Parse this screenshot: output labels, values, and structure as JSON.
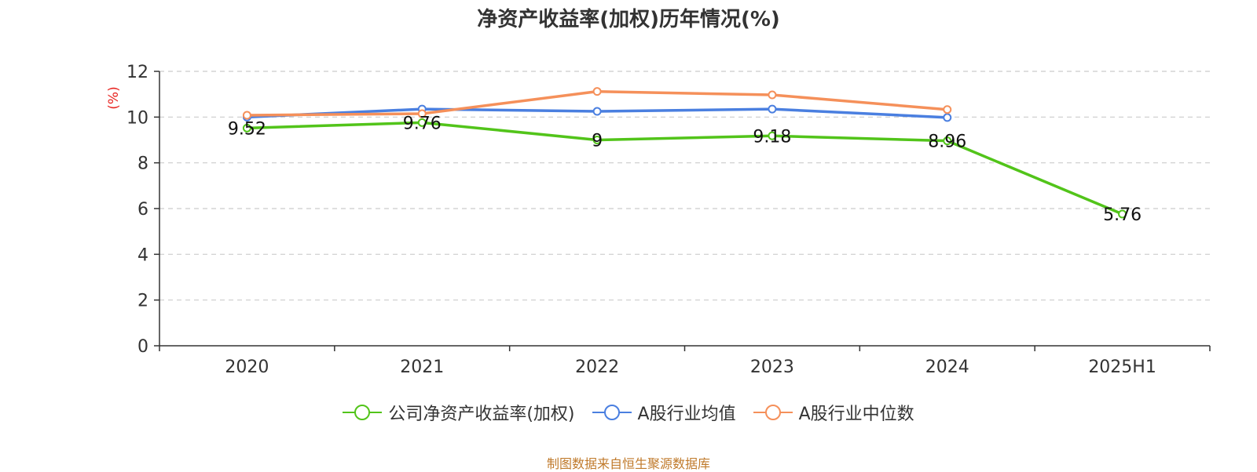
{
  "chart_data": {
    "type": "line",
    "title": "净资产收益率(加权)历年情况(%)",
    "ylabel": "(%)",
    "ylim": [
      0,
      12
    ],
    "yticks": [
      0,
      2,
      4,
      6,
      8,
      10,
      12
    ],
    "categories": [
      "2020",
      "2021",
      "2022",
      "2023",
      "2024",
      "2025H1"
    ],
    "grid": true,
    "legend_position": "bottom",
    "series": [
      {
        "name": "公司净资产收益率(加权)",
        "color": "#52c41a",
        "values": [
          9.52,
          9.76,
          9.0,
          9.18,
          8.96,
          5.76
        ],
        "labels": [
          "9.52",
          "9.76",
          "9",
          "9.18",
          "8.96",
          "5.76"
        ]
      },
      {
        "name": "A股行业均值",
        "color": "#4a7fe0",
        "values": [
          10.0,
          10.35,
          10.25,
          10.35,
          9.98,
          null
        ]
      },
      {
        "name": "A股行业中位数",
        "color": "#f5905a",
        "values": [
          10.08,
          10.15,
          11.12,
          10.97,
          10.33,
          null
        ]
      }
    ]
  },
  "footer": {
    "source": "制图数据来自恒生聚源数据库"
  }
}
